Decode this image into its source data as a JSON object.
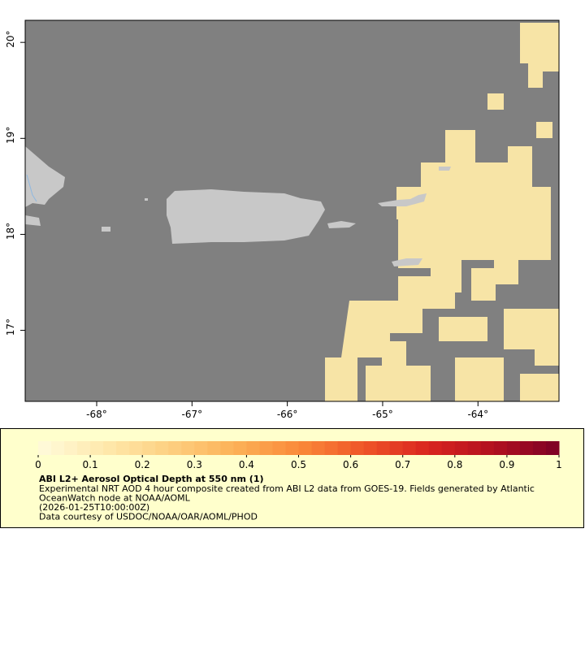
{
  "chart_data": {
    "type": "map",
    "xlim": [
      -68.75,
      -63.15
    ],
    "ylim": [
      16.26,
      20.23
    ],
    "xticks": [
      {
        "value": -68,
        "label": "-68°"
      },
      {
        "value": -67,
        "label": "-67°"
      },
      {
        "value": -66,
        "label": "-66°"
      },
      {
        "value": -65,
        "label": "-65°"
      },
      {
        "value": -64,
        "label": "-64°"
      }
    ],
    "yticks": [
      {
        "value": 17,
        "label": "17°"
      },
      {
        "value": 18,
        "label": "18°"
      },
      {
        "value": 19,
        "label": "19°"
      },
      {
        "value": 20,
        "label": "20°"
      }
    ],
    "colorbar": {
      "lim": [
        0,
        1
      ],
      "ticks": [
        0,
        0.1,
        0.2,
        0.3,
        0.4,
        0.5,
        0.6,
        0.7,
        0.8,
        0.9,
        1
      ],
      "steps": 40,
      "colors": [
        "#fffbdc",
        "#fee9ad",
        "#fdd082",
        "#fcb258",
        "#fa8a3a",
        "#ef5528",
        "#d9241f",
        "#b1101f",
        "#7c0026"
      ]
    },
    "title": "ABI L2+ Aerosol Optical Depth at 550 nm (1)",
    "caption": [
      "Experimental NRT AOD 4 hour composite created from ABI L2 data from GOES-19. Fields generated by Atlantic",
      "OceanWatch node at NOAA/AOML",
      "(2026-01-25T10:00:00Z)",
      "Data courtesy of USDOC/NOAA/OAR/AOML/PHOD"
    ]
  }
}
